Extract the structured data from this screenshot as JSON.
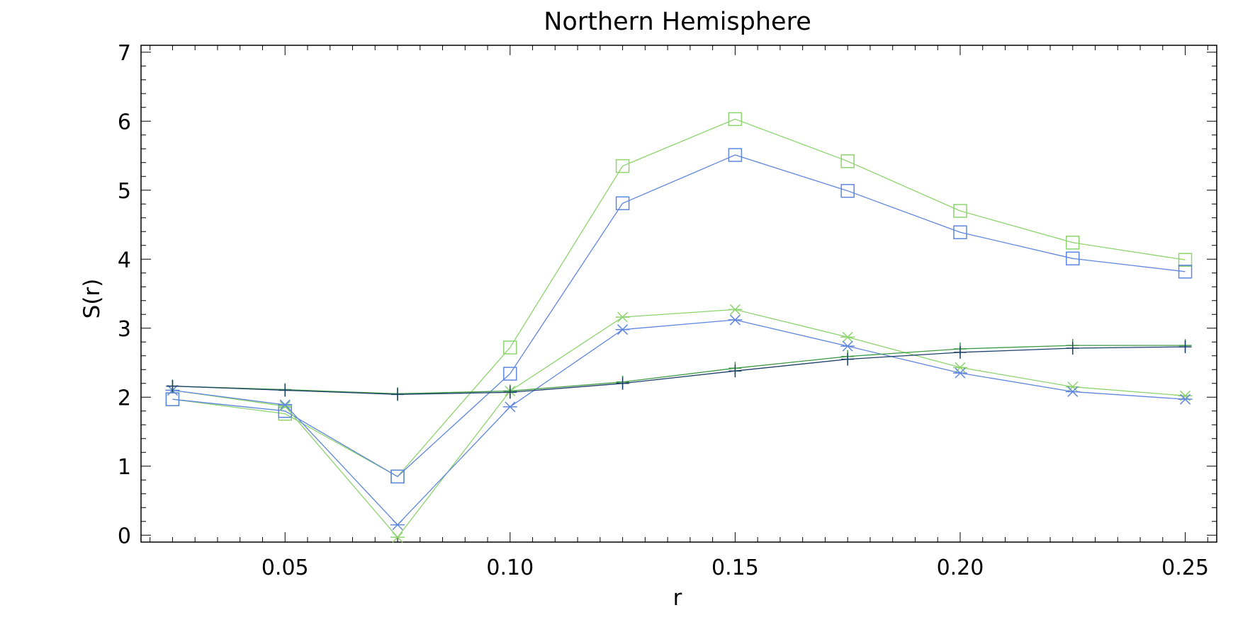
{
  "chart_data": {
    "type": "line",
    "title": "Northern Hemisphere",
    "xlabel": "r",
    "ylabel": "S(r)",
    "xlim": [
      0.018,
      0.257
    ],
    "ylim": [
      -0.1,
      7.1
    ],
    "x_ticks": [
      0.05,
      0.1,
      0.15,
      0.2,
      0.25
    ],
    "x_tick_labels": [
      "0.05",
      "0.10",
      "0.15",
      "0.20",
      "0.25"
    ],
    "y_ticks": [
      0,
      1,
      2,
      3,
      4,
      5,
      6,
      7
    ],
    "y_tick_labels": [
      "0",
      "1",
      "2",
      "3",
      "4",
      "5",
      "6",
      "7"
    ],
    "grid": false,
    "x": [
      0.025,
      0.05,
      0.075,
      0.1,
      0.125,
      0.15,
      0.175,
      0.2,
      0.225,
      0.25
    ],
    "series": [
      {
        "marker": "square",
        "color": "#8ed36e",
        "values": [
          1.97,
          1.76,
          0.85,
          2.72,
          5.35,
          6.03,
          5.42,
          4.7,
          4.24,
          3.99
        ]
      },
      {
        "marker": "square",
        "color": "#5f86e0",
        "values": [
          1.97,
          1.8,
          0.85,
          2.34,
          4.81,
          5.51,
          4.99,
          4.39,
          4.01,
          3.82
        ]
      },
      {
        "marker": "asterisk",
        "color": "#8ed36e",
        "values": [
          2.1,
          1.87,
          -0.03,
          2.09,
          3.16,
          3.27,
          2.87,
          2.43,
          2.15,
          2.02
        ]
      },
      {
        "marker": "asterisk",
        "color": "#5f86e0",
        "values": [
          2.1,
          1.89,
          0.15,
          1.86,
          2.98,
          3.12,
          2.74,
          2.35,
          2.08,
          1.97
        ]
      },
      {
        "marker": "plus",
        "color": "#3e9a44",
        "values": [
          2.16,
          2.11,
          2.05,
          2.09,
          2.22,
          2.42,
          2.59,
          2.7,
          2.75,
          2.75
        ]
      },
      {
        "marker": "plus",
        "color": "#1d3f6a",
        "values": [
          2.16,
          2.1,
          2.04,
          2.07,
          2.2,
          2.38,
          2.55,
          2.65,
          2.71,
          2.73
        ]
      }
    ]
  }
}
